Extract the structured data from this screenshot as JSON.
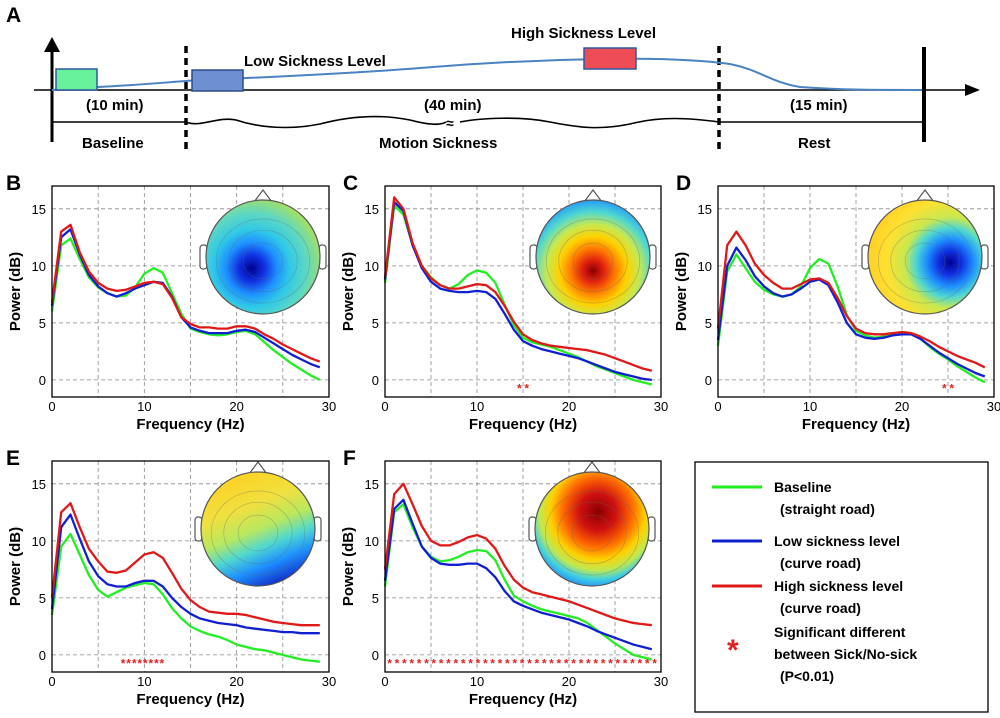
{
  "panel_A": {
    "label": "A",
    "stages": [
      {
        "name": "Baseline",
        "duration": "(10 min)",
        "color": "#66f29b"
      },
      {
        "name": "Motion Sickness",
        "duration": "(40 min)"
      },
      {
        "name": "Rest",
        "duration": "(15 min)"
      }
    ],
    "level_labels": {
      "low": "Low Sickness Level",
      "high": "High Sickness Level"
    },
    "level_colors": {
      "low": "#6b8fd0",
      "high": "#ee4d55"
    },
    "curve_color": "#4a82c2",
    "break_mark": "≈"
  },
  "legend": {
    "items": [
      {
        "line1": "Baseline",
        "line2": "(straight road)",
        "color": "#22ee22"
      },
      {
        "line1": "Low sickness level",
        "line2": "(curve road)",
        "color": "#1020d0"
      },
      {
        "line1": "High sickness level",
        "line2": "(curve road)",
        "color": "#e01818"
      }
    ],
    "sig_symbol": "*",
    "sig_color": "#e02020",
    "sig_lines": [
      "Significant different",
      "between Sick/No-sick",
      "(P<0.01)"
    ]
  },
  "chart_data": [
    {
      "label": "B",
      "type": "line",
      "xlabel": "Frequency (Hz)",
      "ylabel": "Power (dB)",
      "xlim": [
        0,
        30
      ],
      "ylim": [
        -1.5,
        17
      ],
      "grid": true,
      "xticks": [
        0,
        10,
        20,
        30
      ],
      "yticks": [
        0,
        5,
        10,
        15
      ],
      "x": [
        0,
        1,
        2,
        3,
        4,
        5,
        6,
        7,
        8,
        9,
        10,
        11,
        12,
        13,
        14,
        15,
        16,
        17,
        18,
        19,
        20,
        21,
        22,
        23,
        24,
        25,
        26,
        27,
        28,
        29
      ],
      "series": [
        {
          "name": "Baseline",
          "color": "#22ee22",
          "values": [
            6.0,
            11.8,
            12.4,
            10.6,
            9.0,
            8.1,
            7.6,
            7.3,
            7.4,
            8.1,
            9.3,
            9.8,
            9.4,
            7.6,
            5.8,
            4.5,
            4.2,
            4.0,
            3.9,
            4.0,
            4.2,
            4.3,
            4.0,
            3.3,
            2.6,
            2.0,
            1.4,
            0.9,
            0.4,
            0.0
          ]
        },
        {
          "name": "Low sickness level",
          "color": "#1020d0",
          "values": [
            6.5,
            12.5,
            13.2,
            11.0,
            9.2,
            8.2,
            7.6,
            7.3,
            7.6,
            8.0,
            8.3,
            8.6,
            8.5,
            7.3,
            5.5,
            4.6,
            4.3,
            4.1,
            4.1,
            4.1,
            4.3,
            4.4,
            4.2,
            3.7,
            3.2,
            2.7,
            2.2,
            1.8,
            1.4,
            1.1
          ]
        },
        {
          "name": "High sickness level",
          "color": "#e01818",
          "values": [
            6.8,
            13.0,
            13.6,
            11.2,
            9.5,
            8.5,
            8.0,
            7.8,
            7.9,
            8.2,
            8.5,
            8.6,
            8.4,
            7.2,
            5.5,
            4.9,
            4.6,
            4.6,
            4.5,
            4.5,
            4.7,
            4.7,
            4.5,
            4.0,
            3.6,
            3.1,
            2.7,
            2.3,
            1.9,
            1.6
          ]
        }
      ],
      "significant_x": []
    },
    {
      "label": "C",
      "type": "line",
      "xlabel": "Frequency (Hz)",
      "ylabel": "Power (dB)",
      "xlim": [
        0,
        30
      ],
      "ylim": [
        -1.5,
        17
      ],
      "grid": true,
      "xticks": [
        0,
        10,
        20,
        30
      ],
      "yticks": [
        0,
        5,
        10,
        15
      ],
      "x": [
        0,
        1,
        2,
        3,
        4,
        5,
        6,
        7,
        8,
        9,
        10,
        11,
        12,
        13,
        14,
        15,
        16,
        17,
        18,
        19,
        20,
        21,
        22,
        23,
        24,
        25,
        26,
        27,
        28,
        29
      ],
      "series": [
        {
          "name": "Baseline",
          "color": "#22ee22",
          "values": [
            8.5,
            15.3,
            14.5,
            11.8,
            10.0,
            9.0,
            8.3,
            8.0,
            8.4,
            9.2,
            9.6,
            9.4,
            8.5,
            6.6,
            4.8,
            3.7,
            3.3,
            3.1,
            2.9,
            2.6,
            2.3,
            2.0,
            1.6,
            1.2,
            0.9,
            0.6,
            0.3,
            0.0,
            -0.2,
            -0.4
          ]
        },
        {
          "name": "Low sickness level",
          "color": "#1020d0",
          "values": [
            8.8,
            15.6,
            14.8,
            11.8,
            9.8,
            8.6,
            8.0,
            7.8,
            7.7,
            7.7,
            7.8,
            7.7,
            7.1,
            5.8,
            4.4,
            3.4,
            3.0,
            2.7,
            2.5,
            2.3,
            2.1,
            1.9,
            1.6,
            1.3,
            1.0,
            0.7,
            0.5,
            0.3,
            0.1,
            0.0
          ]
        },
        {
          "name": "High sickness level",
          "color": "#e01818",
          "values": [
            9.0,
            16.0,
            15.0,
            12.0,
            10.0,
            8.9,
            8.3,
            8.0,
            8.0,
            8.2,
            8.4,
            8.3,
            7.7,
            6.5,
            5.1,
            4.0,
            3.5,
            3.2,
            3.0,
            2.9,
            2.8,
            2.7,
            2.6,
            2.4,
            2.2,
            1.9,
            1.6,
            1.3,
            1.0,
            0.8
          ]
        }
      ],
      "significant_x": [
        14.6,
        15.4
      ]
    },
    {
      "label": "D",
      "type": "line",
      "xlabel": "Frequency (Hz)",
      "ylabel": "Power (dB)",
      "xlim": [
        0,
        30
      ],
      "ylim": [
        -1.5,
        17
      ],
      "grid": true,
      "xticks": [
        0,
        10,
        20,
        30
      ],
      "yticks": [
        0,
        5,
        10,
        15
      ],
      "x": [
        0,
        1,
        2,
        3,
        4,
        5,
        6,
        7,
        8,
        9,
        10,
        11,
        12,
        13,
        14,
        15,
        16,
        17,
        18,
        19,
        20,
        21,
        22,
        23,
        24,
        25,
        26,
        27,
        28,
        29
      ],
      "series": [
        {
          "name": "Baseline",
          "color": "#22ee22",
          "values": [
            3.0,
            9.5,
            11.0,
            9.8,
            8.6,
            7.9,
            7.5,
            7.3,
            7.5,
            8.2,
            9.8,
            10.6,
            10.2,
            8.2,
            5.7,
            4.3,
            3.9,
            3.7,
            3.8,
            4.0,
            4.2,
            4.1,
            3.6,
            2.9,
            2.3,
            1.8,
            1.2,
            0.7,
            0.2,
            -0.2
          ]
        },
        {
          "name": "Low sickness level",
          "color": "#1020d0",
          "values": [
            3.5,
            10.0,
            11.6,
            10.5,
            9.1,
            8.2,
            7.6,
            7.3,
            7.5,
            8.0,
            8.6,
            8.8,
            8.3,
            6.8,
            5.0,
            4.0,
            3.7,
            3.6,
            3.7,
            3.9,
            4.0,
            4.0,
            3.6,
            3.0,
            2.4,
            1.9,
            1.4,
            1.0,
            0.6,
            0.3
          ]
        },
        {
          "name": "High sickness level",
          "color": "#e01818",
          "values": [
            4.5,
            11.8,
            13.0,
            11.8,
            10.2,
            9.2,
            8.5,
            8.0,
            8.0,
            8.4,
            8.8,
            8.9,
            8.5,
            7.2,
            5.6,
            4.5,
            4.1,
            4.0,
            4.0,
            4.1,
            4.2,
            4.1,
            3.8,
            3.4,
            2.9,
            2.5,
            2.1,
            1.8,
            1.5,
            1.1
          ]
        }
      ],
      "significant_x": [
        24.6,
        25.4
      ]
    },
    {
      "label": "E",
      "type": "line",
      "xlabel": "Frequency (Hz)",
      "ylabel": "Power (dB)",
      "xlim": [
        0,
        30
      ],
      "ylim": [
        -1.5,
        17
      ],
      "grid": true,
      "xticks": [
        0,
        10,
        20,
        30
      ],
      "yticks": [
        0,
        5,
        10,
        15
      ],
      "x": [
        0,
        1,
        2,
        3,
        4,
        5,
        6,
        7,
        8,
        9,
        10,
        11,
        12,
        13,
        14,
        15,
        16,
        17,
        18,
        19,
        20,
        21,
        22,
        23,
        24,
        25,
        26,
        27,
        28,
        29
      ],
      "series": [
        {
          "name": "Baseline",
          "color": "#22ee22",
          "values": [
            3.5,
            9.5,
            10.6,
            8.8,
            7.0,
            5.7,
            5.1,
            5.5,
            5.9,
            6.1,
            6.3,
            6.2,
            5.3,
            4.1,
            3.2,
            2.5,
            2.1,
            1.8,
            1.6,
            1.3,
            0.9,
            0.7,
            0.5,
            0.4,
            0.2,
            0.0,
            -0.2,
            -0.4,
            -0.5,
            -0.6
          ]
        },
        {
          "name": "Low sickness level",
          "color": "#1020d0",
          "values": [
            4.0,
            11.2,
            12.3,
            10.2,
            8.2,
            6.9,
            6.2,
            6.0,
            6.0,
            6.3,
            6.5,
            6.5,
            6.0,
            5.0,
            4.2,
            3.6,
            3.2,
            3.0,
            2.8,
            2.7,
            2.6,
            2.4,
            2.3,
            2.2,
            2.1,
            2.0,
            2.0,
            1.9,
            1.9,
            1.9
          ]
        },
        {
          "name": "High sickness level",
          "color": "#e01818",
          "values": [
            5.0,
            12.5,
            13.3,
            11.2,
            9.3,
            8.2,
            7.3,
            7.2,
            7.4,
            8.1,
            8.8,
            9.0,
            8.5,
            7.2,
            5.8,
            4.8,
            4.2,
            3.8,
            3.7,
            3.6,
            3.6,
            3.5,
            3.3,
            3.1,
            2.9,
            2.8,
            2.7,
            2.6,
            2.6,
            2.6
          ]
        }
      ],
      "significant_x": [
        7.7,
        8.3,
        8.9,
        9.5,
        10.1,
        10.7,
        11.3,
        11.9
      ]
    },
    {
      "label": "F",
      "type": "line",
      "xlabel": "Frequency (Hz)",
      "ylabel": "Power (dB)",
      "xlim": [
        0,
        30
      ],
      "ylim": [
        -1.5,
        17
      ],
      "grid": true,
      "xticks": [
        0,
        10,
        20,
        30
      ],
      "yticks": [
        0,
        5,
        10,
        15
      ],
      "x": [
        0,
        1,
        2,
        3,
        4,
        5,
        6,
        7,
        8,
        9,
        10,
        11,
        12,
        13,
        14,
        15,
        16,
        17,
        18,
        19,
        20,
        21,
        22,
        23,
        24,
        25,
        26,
        27,
        28,
        29
      ],
      "series": [
        {
          "name": "Baseline",
          "color": "#22ee22",
          "values": [
            6.0,
            12.5,
            13.2,
            11.2,
            9.5,
            8.6,
            8.2,
            8.3,
            8.6,
            9.0,
            9.2,
            9.1,
            8.3,
            6.6,
            5.2,
            4.7,
            4.3,
            4.0,
            3.8,
            3.6,
            3.4,
            3.2,
            2.8,
            2.2,
            1.6,
            1.0,
            0.5,
            0.0,
            -0.2,
            -0.4
          ]
        },
        {
          "name": "Low sickness level",
          "color": "#1020d0",
          "values": [
            6.5,
            12.8,
            13.6,
            11.5,
            9.5,
            8.5,
            8.0,
            7.9,
            7.9,
            8.0,
            8.0,
            7.6,
            6.8,
            5.6,
            4.7,
            4.3,
            4.0,
            3.7,
            3.5,
            3.3,
            3.1,
            2.8,
            2.5,
            2.1,
            1.8,
            1.5,
            1.2,
            0.9,
            0.7,
            0.5
          ]
        },
        {
          "name": "High sickness level",
          "color": "#e01818",
          "values": [
            7.5,
            14.1,
            15.0,
            13.2,
            11.3,
            10.0,
            9.6,
            9.6,
            9.9,
            10.3,
            10.5,
            10.2,
            9.3,
            7.8,
            6.6,
            5.9,
            5.5,
            5.3,
            5.1,
            4.9,
            4.7,
            4.4,
            4.1,
            3.8,
            3.5,
            3.2,
            3.0,
            2.8,
            2.7,
            2.6
          ]
        }
      ],
      "significant_x": [
        0.5,
        1.3,
        2.1,
        2.9,
        3.7,
        4.5,
        5.3,
        6.1,
        6.9,
        7.7,
        8.5,
        9.3,
        10.1,
        10.9,
        11.7,
        12.5,
        13.3,
        14.1,
        14.9,
        15.7,
        16.5,
        17.3,
        18.1,
        18.9,
        19.7,
        20.5,
        21.3,
        22.1,
        22.9,
        23.7,
        24.5,
        25.3,
        26.1,
        26.9,
        27.7,
        28.5,
        29.3
      ]
    }
  ]
}
